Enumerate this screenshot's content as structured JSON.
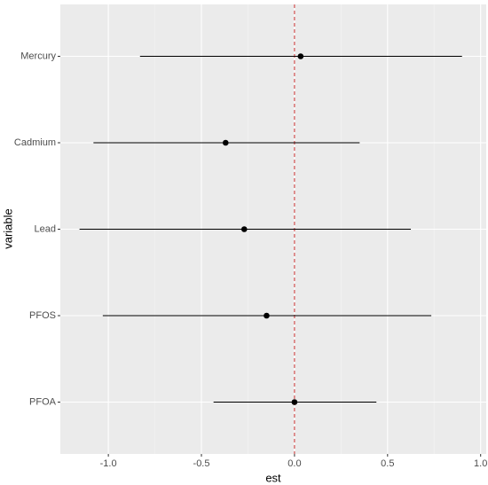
{
  "chart_data": {
    "type": "forest",
    "x_label": "est",
    "y_label": "variable",
    "categories": [
      "Mercury",
      "Cadmium",
      "Lead",
      "PFOS",
      "PFOA"
    ],
    "values": [
      0.033,
      -0.37,
      -0.27,
      -0.15,
      0.0
    ],
    "lower": [
      -0.83,
      -1.08,
      -1.155,
      -1.03,
      -0.435
    ],
    "upper": [
      0.9,
      0.35,
      0.625,
      0.735,
      0.44
    ],
    "color": "#000000",
    "xlim": [
      -1.258,
      1.03
    ],
    "xticks": [
      {
        "value": -1,
        "label": "-1.0"
      },
      -0.5,
      {
        "value": 0,
        "label": "0.0"
      },
      0.5,
      {
        "value": 1,
        "label": "1.0"
      }
    ],
    "xminor": [
      -0.75,
      -0.25,
      0.25,
      0.75
    ],
    "ref_line": 0,
    "ref_color": "#cc3333",
    "grid": true
  }
}
